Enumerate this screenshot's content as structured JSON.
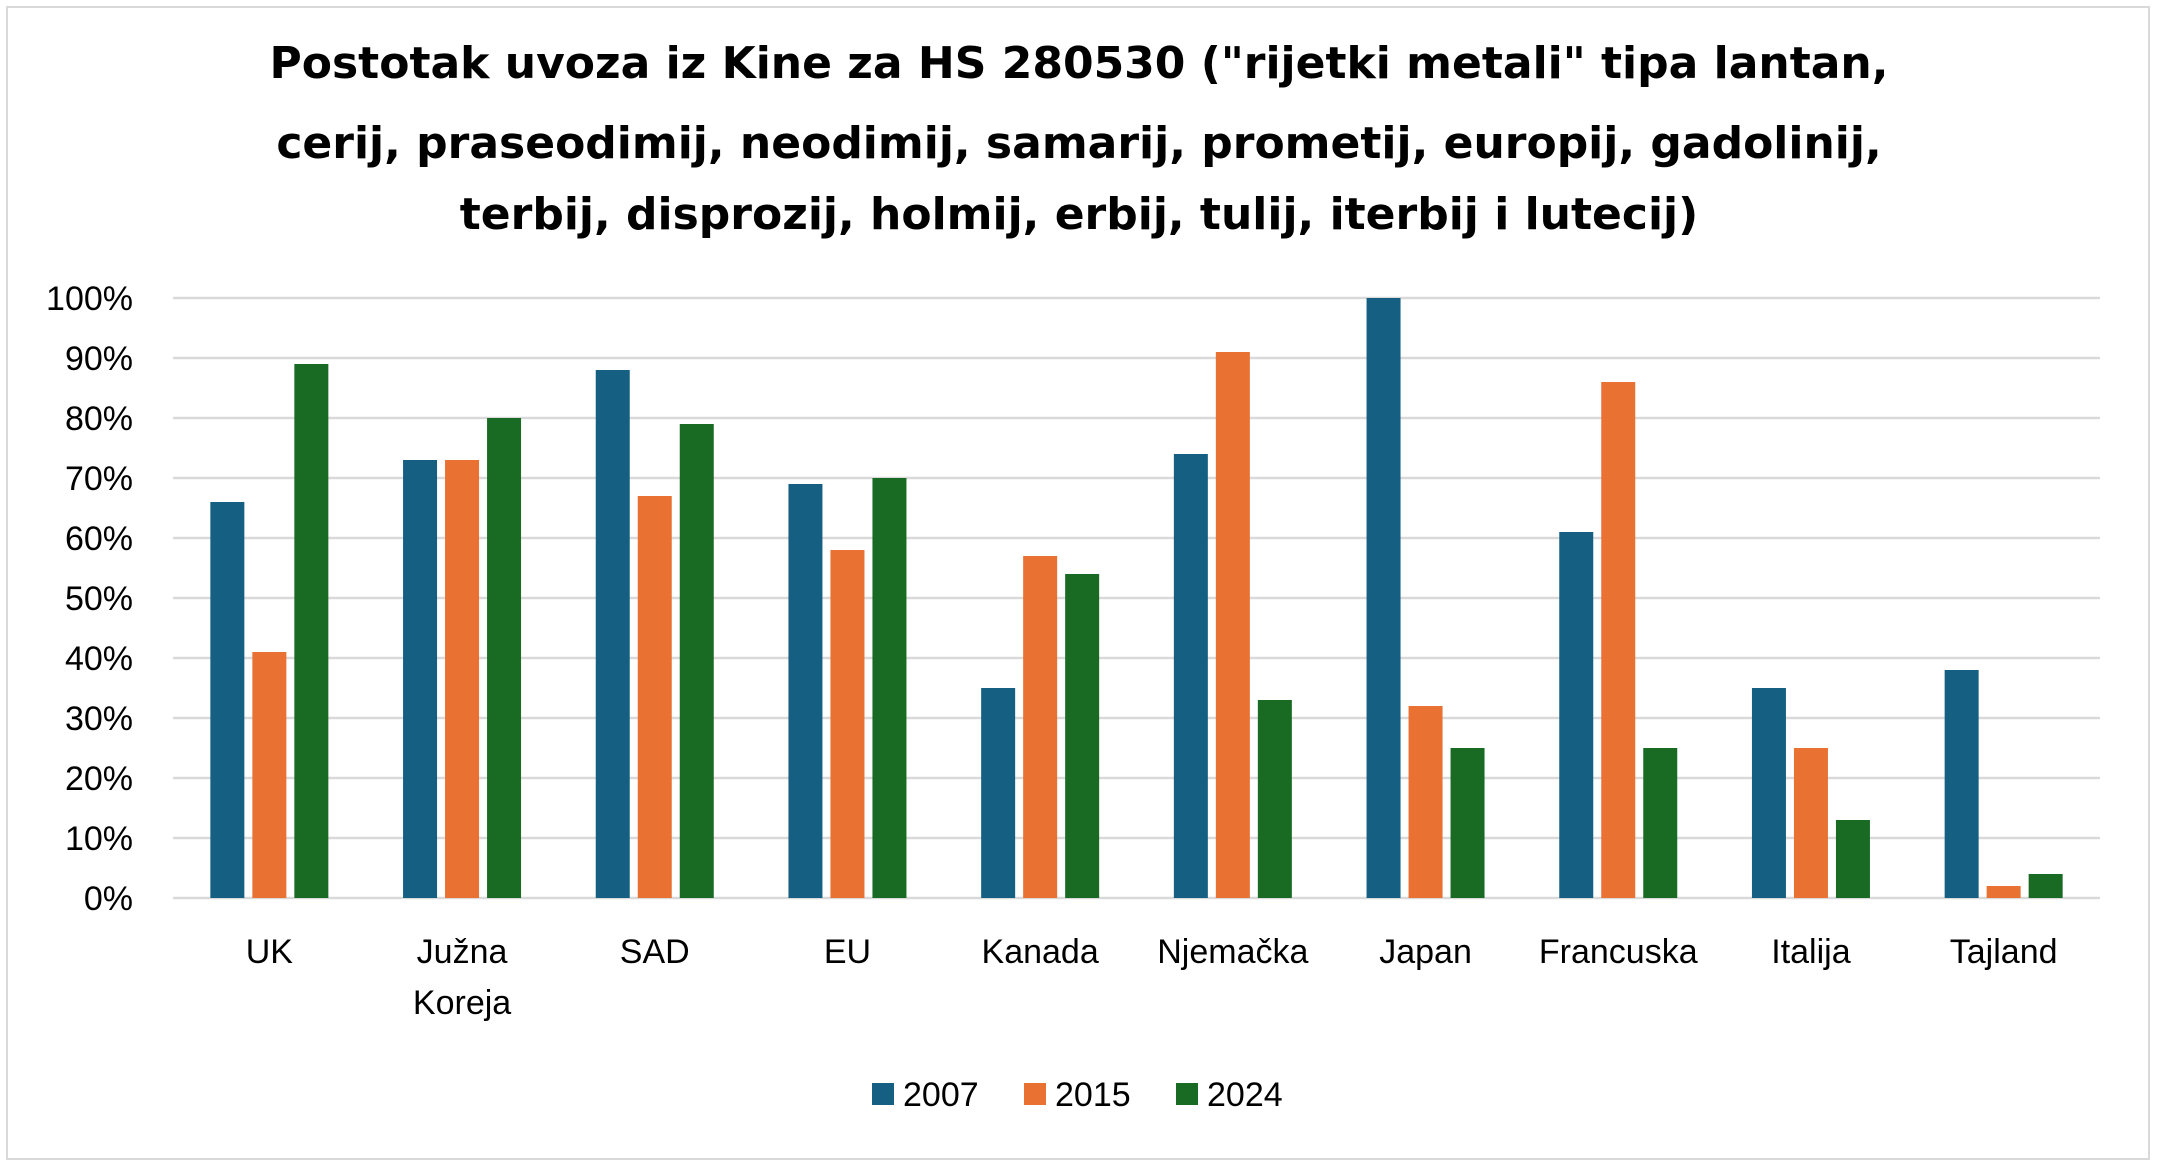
{
  "chart_data": {
    "type": "bar",
    "title_lines": [
      "Postotak uvoza iz Kine za HS 280530 (\"rijetki metali\" tipa lantan,",
      "cerij, praseodimij, neodimij, samarij, prometij, europij, gadolinij,",
      "terbij, disprozij, holmij, erbij, tulij, iterbij i lutecij)"
    ],
    "categories": [
      "UK",
      "Južna Koreja",
      "SAD",
      "EU",
      "Kanada",
      "Njemačka",
      "Japan",
      "Francuska",
      "Italija",
      "Tajland"
    ],
    "category_label_lines": [
      [
        "UK"
      ],
      [
        "Južna",
        "Koreja"
      ],
      [
        "SAD"
      ],
      [
        "EU"
      ],
      [
        "Kanada"
      ],
      [
        "Njemačka"
      ],
      [
        "Japan"
      ],
      [
        "Francuska"
      ],
      [
        "Italija"
      ],
      [
        "Tajland"
      ]
    ],
    "series": [
      {
        "name": "2007",
        "color": "#156082",
        "values": [
          66,
          73,
          88,
          69,
          35,
          74,
          100,
          61,
          35,
          38
        ]
      },
      {
        "name": "2015",
        "color": "#e97132",
        "values": [
          41,
          73,
          67,
          58,
          57,
          91,
          32,
          86,
          25,
          2
        ]
      },
      {
        "name": "2024",
        "color": "#196b24",
        "values": [
          89,
          80,
          79,
          70,
          54,
          33,
          25,
          25,
          13,
          4
        ]
      }
    ],
    "ylim": [
      0,
      100
    ],
    "y_ticks": [
      "0%",
      "10%",
      "20%",
      "30%",
      "40%",
      "50%",
      "60%",
      "70%",
      "80%",
      "90%",
      "100%"
    ],
    "xlabel": "",
    "ylabel": "",
    "grid": true,
    "grid_color": "#d9d9d9",
    "legend_position": "bottom"
  }
}
